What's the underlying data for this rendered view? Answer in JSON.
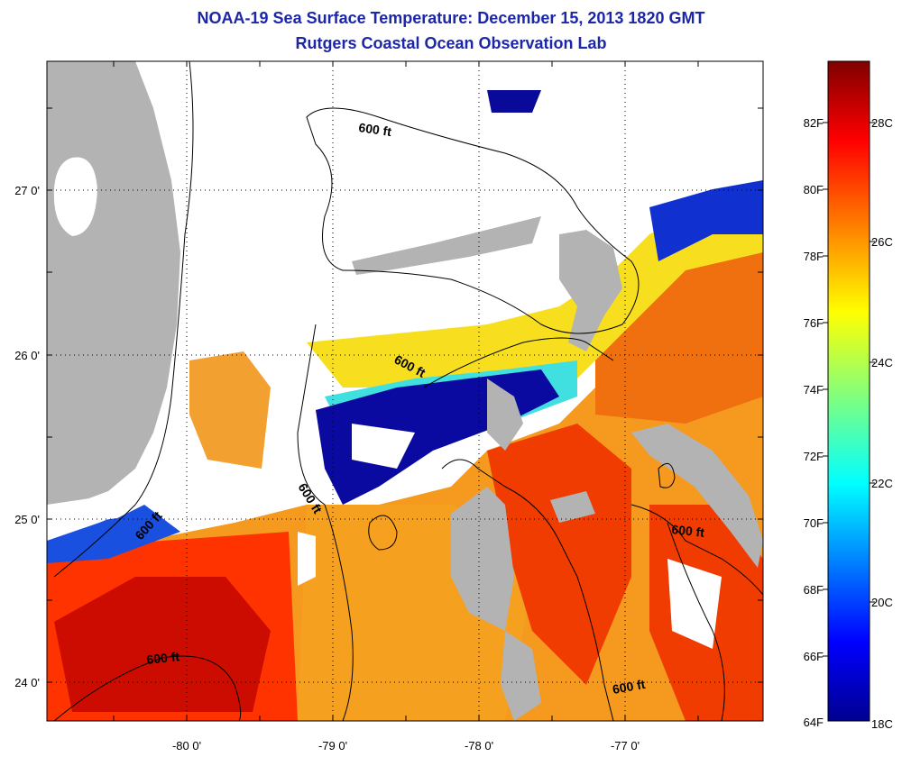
{
  "title": {
    "line1": "NOAA-19 Sea Surface Temperature:  December 15, 2013 1820 GMT",
    "line2": "Rutgers Coastal Ocean Observation Lab"
  },
  "map": {
    "lon_labels": [
      "-80 0'",
      "-79 0'",
      "-78 0'",
      "-77 0'"
    ],
    "lat_labels": [
      "27 0'",
      "26 0'",
      "25 0'",
      "24 0'"
    ],
    "lon_range": [
      -80.85,
      -76.5
    ],
    "lat_range": [
      23.75,
      27.75
    ],
    "contour_label": "600 ft",
    "contour_labels": [
      "600 ft",
      "600 ft",
      "600 ft",
      "600 ft",
      "600 ft",
      "600 ft"
    ],
    "colors": {
      "land": "#b3b3b3",
      "cloud": "#ffffff",
      "cold": "#00008f",
      "warm": "#ff2a00",
      "hot": "#b00000"
    }
  },
  "colorbar": {
    "fahrenheit_labels": [
      "82F",
      "80F",
      "78F",
      "76F",
      "74F",
      "72F",
      "70F",
      "68F",
      "66F",
      "64F"
    ],
    "celsius_labels": [
      "28C",
      "26C",
      "24C",
      "22C",
      "20C",
      "18C"
    ],
    "range_c": [
      18,
      29.5
    ]
  }
}
